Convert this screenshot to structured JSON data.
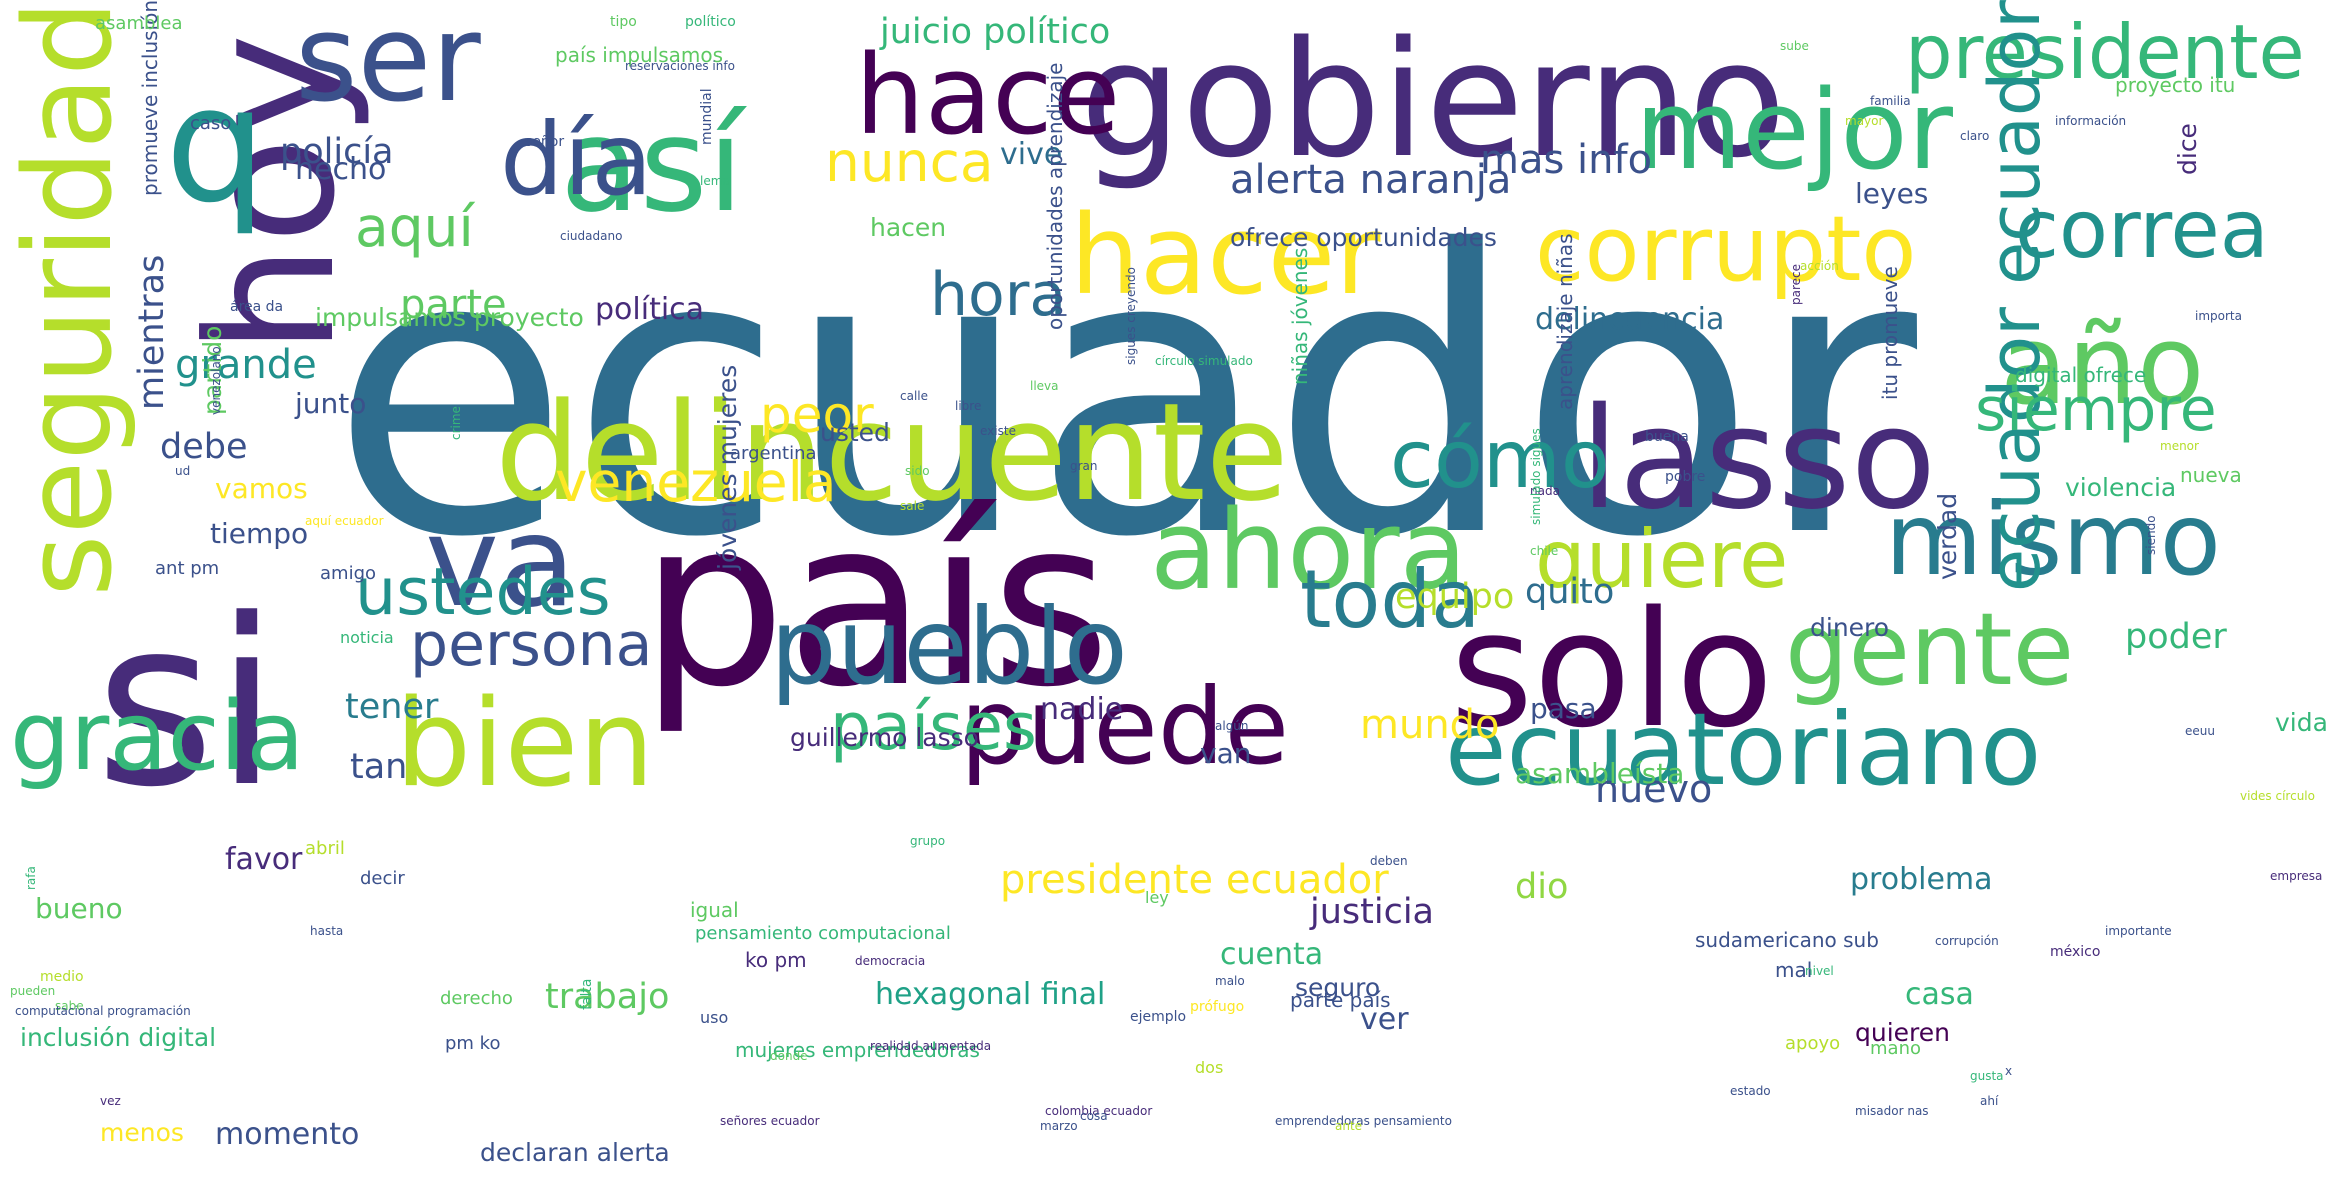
{
  "palette": {
    "deep_purple": "#440154",
    "indigo": "#472c7a",
    "slate_blue": "#3b518b",
    "steel_blue": "#2e6d8e",
    "teal_blue": "#287c8e",
    "teal": "#21918c",
    "sea_green": "#1fa187",
    "green": "#35b779",
    "light_green": "#5ec962",
    "lime": "#90d743",
    "yellow_green": "#b5de2b",
    "yellow": "#fde725"
  },
  "words": [
    {
      "text": "ecuador",
      "color": "#2e6d8e"
    },
    {
      "text": "país",
      "color": "#440154"
    },
    {
      "text": "si",
      "color": "#472c7a"
    },
    {
      "text": "gobierno",
      "color": "#472c7a"
    },
    {
      "text": "solo",
      "color": "#440154"
    },
    {
      "text": "lasso",
      "color": "#472c7a"
    },
    {
      "text": "delincuente",
      "color": "#b5de2b"
    },
    {
      "text": "hoy",
      "color": "#472c7a"
    },
    {
      "text": "bien",
      "color": "#b5de2b"
    },
    {
      "text": "pueblo",
      "color": "#2e6d8e"
    },
    {
      "text": "ahora",
      "color": "#5ec962"
    },
    {
      "text": "puede",
      "color": "#440154"
    },
    {
      "text": "ecuatoriano",
      "color": "#21918c"
    },
    {
      "text": "gente",
      "color": "#5ec962"
    },
    {
      "text": "así",
      "color": "#35b779"
    },
    {
      "text": "hacer",
      "color": "#fde725"
    },
    {
      "text": "q",
      "color": "#21918c"
    },
    {
      "text": "seguridad",
      "color": "#b5de2b"
    },
    {
      "text": "va",
      "color": "#3b518b"
    },
    {
      "text": "mejor",
      "color": "#35b779"
    },
    {
      "text": "año",
      "color": "#5ec962"
    },
    {
      "text": "mismo",
      "color": "#287c8e"
    },
    {
      "text": "corrupto",
      "color": "#fde725"
    },
    {
      "text": "hace",
      "color": "#440154"
    },
    {
      "text": "ser",
      "color": "#3b518b"
    },
    {
      "text": "día",
      "color": "#3b518b"
    },
    {
      "text": "quiere",
      "color": "#b5de2b"
    },
    {
      "text": "cómo",
      "color": "#21918c"
    },
    {
      "text": "gracia",
      "color": "#35b779"
    },
    {
      "text": "presidente",
      "color": "#35b779"
    },
    {
      "text": "correa",
      "color": "#21918c"
    },
    {
      "text": "toda",
      "color": "#287c8e"
    },
    {
      "text": "ecuador ecuador",
      "color": "#21918c"
    },
    {
      "text": "siempre",
      "color": "#35b779"
    },
    {
      "text": "persona",
      "color": "#3b518b"
    },
    {
      "text": "ustedes",
      "color": "#21918c"
    },
    {
      "text": "países",
      "color": "#35b779"
    },
    {
      "text": "venezuela",
      "color": "#fde725"
    },
    {
      "text": "hora",
      "color": "#2e6d8e"
    },
    {
      "text": "nunca",
      "color": "#fde725"
    },
    {
      "text": "aquí",
      "color": "#5ec962"
    },
    {
      "text": "peor",
      "color": "#fde725"
    },
    {
      "text": "alerta naranja",
      "color": "#3b518b"
    },
    {
      "text": "mientras",
      "color": "#3b518b"
    },
    {
      "text": "mundo",
      "color": "#fde725"
    },
    {
      "text": "parte",
      "color": "#5ec962"
    },
    {
      "text": "grande",
      "color": "#21918c"
    },
    {
      "text": "presidente ecuador",
      "color": "#fde725"
    },
    {
      "text": "mas info",
      "color": "#3b518b"
    },
    {
      "text": "quito",
      "color": "#2e6d8e"
    },
    {
      "text": "tener",
      "color": "#287c8e"
    },
    {
      "text": "nuevo",
      "color": "#3b518b"
    },
    {
      "text": "juicio político",
      "color": "#35b779"
    },
    {
      "text": "policía",
      "color": "#3b518b"
    },
    {
      "text": "trabajo",
      "color": "#5ec962"
    },
    {
      "text": "equipo",
      "color": "#b5de2b"
    },
    {
      "text": "poder",
      "color": "#35b779"
    },
    {
      "text": "debe",
      "color": "#3b518b"
    },
    {
      "text": "política",
      "color": "#472c7a"
    },
    {
      "text": "delincuencia",
      "color": "#2e6d8e"
    },
    {
      "text": "tan",
      "color": "#3b518b"
    },
    {
      "text": "favor",
      "color": "#472c7a"
    },
    {
      "text": "dio",
      "color": "#90d743"
    },
    {
      "text": "justicia",
      "color": "#472c7a"
    },
    {
      "text": "momento",
      "color": "#3b518b"
    },
    {
      "text": "ver",
      "color": "#3b518b"
    },
    {
      "text": "cuenta",
      "color": "#35b779"
    },
    {
      "text": "problema",
      "color": "#287c8e"
    },
    {
      "text": "hexagonal final",
      "color": "#1fa187"
    },
    {
      "text": "hecho",
      "color": "#3b518b"
    },
    {
      "text": "nadie",
      "color": "#472c7a"
    },
    {
      "text": "casa",
      "color": "#35b779"
    },
    {
      "text": "vive",
      "color": "#2e6d8e"
    },
    {
      "text": "dice",
      "color": "#472c7a"
    },
    {
      "text": "partido",
      "color": "#5ec962"
    },
    {
      "text": "tiempo",
      "color": "#3b518b"
    },
    {
      "text": "vamos",
      "color": "#fde725"
    },
    {
      "text": "junto",
      "color": "#3b518b"
    },
    {
      "text": "bueno",
      "color": "#5ec962"
    },
    {
      "text": "asambleísta",
      "color": "#5ec962"
    },
    {
      "text": "van",
      "color": "#3b518b"
    },
    {
      "text": "vida",
      "color": "#35b779"
    },
    {
      "text": "usted",
      "color": "#3b518b"
    },
    {
      "text": "hacen",
      "color": "#5ec962"
    },
    {
      "text": "dinero",
      "color": "#3b518b"
    },
    {
      "text": "pasa",
      "color": "#3b518b"
    },
    {
      "text": "seguro",
      "color": "#3b518b"
    },
    {
      "text": "menos",
      "color": "#fde725"
    },
    {
      "text": "quieren",
      "color": "#440154"
    },
    {
      "text": "verdad",
      "color": "#3b518b"
    },
    {
      "text": "leyes",
      "color": "#3b518b"
    },
    {
      "text": "declaran alerta",
      "color": "#3b518b"
    },
    {
      "text": "violencia",
      "color": "#35b779"
    },
    {
      "text": "jóvenes mujeres",
      "color": "#3b518b"
    },
    {
      "text": "guillermo lasso",
      "color": "#472c7a"
    },
    {
      "text": "impulsamos proyecto",
      "color": "#5ec962"
    },
    {
      "text": "ofrece oportunidades",
      "color": "#3b518b"
    },
    {
      "text": "inclusión digital",
      "color": "#35b779"
    },
    {
      "text": "país impulsamos",
      "color": "#5ec962"
    },
    {
      "text": "digital ofrece",
      "color": "#35b779"
    },
    {
      "text": "parte país",
      "color": "#3b518b"
    },
    {
      "text": "itu promueve",
      "color": "#3b518b"
    },
    {
      "text": "aprendizaje niñas",
      "color": "#3b518b"
    },
    {
      "text": "oportunidades aprendizaje",
      "color": "#3b518b"
    },
    {
      "text": "niñas jóvenes",
      "color": "#35b779"
    },
    {
      "text": "mujeres emprendedoras",
      "color": "#35b779"
    },
    {
      "text": "sudamericano sub",
      "color": "#3b518b"
    },
    {
      "text": "promueve inclusión",
      "color": "#3b518b"
    },
    {
      "text": "proyecto itu",
      "color": "#5ec962"
    },
    {
      "text": "igual",
      "color": "#5ec962"
    },
    {
      "text": "ko pm",
      "color": "#472c7a"
    },
    {
      "text": "argentina",
      "color": "#3b518b"
    },
    {
      "text": "nueva",
      "color": "#5ec962"
    },
    {
      "text": "mal",
      "color": "#3b518b"
    },
    {
      "text": "ant pm",
      "color": "#3b518b"
    },
    {
      "text": "amigo",
      "color": "#3b518b"
    },
    {
      "text": "pm ko",
      "color": "#3b518b"
    },
    {
      "text": "apoyo",
      "color": "#b5de2b"
    },
    {
      "text": "mano",
      "color": "#5ec962"
    },
    {
      "text": "abril",
      "color": "#b5de2b"
    },
    {
      "text": "decir",
      "color": "#3b518b"
    },
    {
      "text": "caso",
      "color": "#3b518b"
    },
    {
      "text": "asamblea",
      "color": "#5ec962"
    },
    {
      "text": "pensamiento computacional",
      "color": "#35b779"
    },
    {
      "text": "derecho",
      "color": "#5ec962"
    },
    {
      "text": "noticia",
      "color": "#35b779"
    },
    {
      "text": "uso",
      "color": "#3b518b"
    },
    {
      "text": "dos",
      "color": "#b5de2b"
    },
    {
      "text": "ley",
      "color": "#5ec962"
    },
    {
      "text": "falta",
      "color": "#35b779"
    },
    {
      "text": "medio",
      "color": "#b5de2b"
    },
    {
      "text": "señor",
      "color": "#3b518b"
    },
    {
      "text": "mundial",
      "color": "#3b518b"
    },
    {
      "text": "ciudadano",
      "color": "#3b518b"
    },
    {
      "text": "tipo",
      "color": "#5ec962"
    },
    {
      "text": "político",
      "color": "#35b779"
    },
    {
      "text": "calle",
      "color": "#3b518b"
    },
    {
      "text": "libre",
      "color": "#3b518b"
    },
    {
      "text": "existe",
      "color": "#3b518b"
    },
    {
      "text": "lleva",
      "color": "#5ec962"
    },
    {
      "text": "sido",
      "color": "#5ec962"
    },
    {
      "text": "gran",
      "color": "#3b518b"
    },
    {
      "text": "buena",
      "color": "#3b518b"
    },
    {
      "text": "pobre",
      "color": "#3b518b"
    },
    {
      "text": "nada",
      "color": "#472c7a"
    },
    {
      "text": "chile",
      "color": "#5ec962"
    },
    {
      "text": "sale",
      "color": "#b5de2b"
    },
    {
      "text": "importa",
      "color": "#3b518b"
    },
    {
      "text": "familia",
      "color": "#3b518b"
    },
    {
      "text": "información",
      "color": "#3b518b"
    },
    {
      "text": "empresa",
      "color": "#472c7a"
    },
    {
      "text": "importante",
      "color": "#3b518b"
    },
    {
      "text": "corrupción",
      "color": "#3b518b"
    },
    {
      "text": "méxico",
      "color": "#472c7a"
    },
    {
      "text": "nivel",
      "color": "#35b779"
    },
    {
      "text": "malo",
      "color": "#3b518b"
    },
    {
      "text": "prófugo",
      "color": "#fde725"
    },
    {
      "text": "ejemplo",
      "color": "#3b518b"
    },
    {
      "text": "donde",
      "color": "#5ec962"
    },
    {
      "text": "pueden",
      "color": "#5ec962"
    },
    {
      "text": "sabe",
      "color": "#5ec962"
    },
    {
      "text": "grupo",
      "color": "#35b779"
    },
    {
      "text": "eeuu",
      "color": "#3b518b"
    },
    {
      "text": "deben",
      "color": "#3b518b"
    },
    {
      "text": "menor",
      "color": "#b5de2b"
    },
    {
      "text": "claro",
      "color": "#3b518b"
    },
    {
      "text": "mayor",
      "color": "#b5de2b"
    },
    {
      "text": "algún",
      "color": "#3b518b"
    },
    {
      "text": "siendo",
      "color": "#3b518b"
    },
    {
      "text": "parece",
      "color": "#472c7a"
    },
    {
      "text": "rafa",
      "color": "#35b779"
    },
    {
      "text": "crime",
      "color": "#35b779"
    },
    {
      "text": "democracia",
      "color": "#472c7a"
    },
    {
      "text": "lema",
      "color": "#35b779"
    },
    {
      "text": "aquí ecuador",
      "color": "#fde725"
    },
    {
      "text": "área da",
      "color": "#3b518b"
    },
    {
      "text": "ud",
      "color": "#3b518b"
    },
    {
      "text": "venezolano",
      "color": "#3b518b"
    },
    {
      "text": "sigues creyendo",
      "color": "#3b518b"
    },
    {
      "text": "simulado sigues",
      "color": "#35b779"
    },
    {
      "text": "círculo simulado",
      "color": "#35b779"
    },
    {
      "text": "vides círculo",
      "color": "#b5de2b"
    },
    {
      "text": "realidad aumentada",
      "color": "#472c7a"
    },
    {
      "text": "misador nas",
      "color": "#3b518b"
    },
    {
      "text": "colombia ecuador",
      "color": "#472c7a"
    },
    {
      "text": "emprendedoras pensamiento",
      "color": "#3b518b"
    },
    {
      "text": "señores ecuador",
      "color": "#472c7a"
    },
    {
      "text": "computacional programación",
      "color": "#3b518b"
    },
    {
      "text": "reservaciones info",
      "color": "#3b518b"
    },
    {
      "text": "sube",
      "color": "#5ec962"
    },
    {
      "text": "hasta",
      "color": "#3b518b"
    },
    {
      "text": "ante",
      "color": "#b5de2b"
    },
    {
      "text": "vez",
      "color": "#472c7a"
    },
    {
      "text": "cosa",
      "color": "#3b518b"
    },
    {
      "text": "marzo",
      "color": "#3b518b"
    },
    {
      "text": "acción",
      "color": "#b5de2b"
    },
    {
      "text": "ahí",
      "color": "#3b518b"
    },
    {
      "text": "gusta",
      "color": "#35b779"
    },
    {
      "text": "estado",
      "color": "#3b518b"
    },
    {
      "text": "x",
      "color": "#3b518b"
    }
  ]
}
